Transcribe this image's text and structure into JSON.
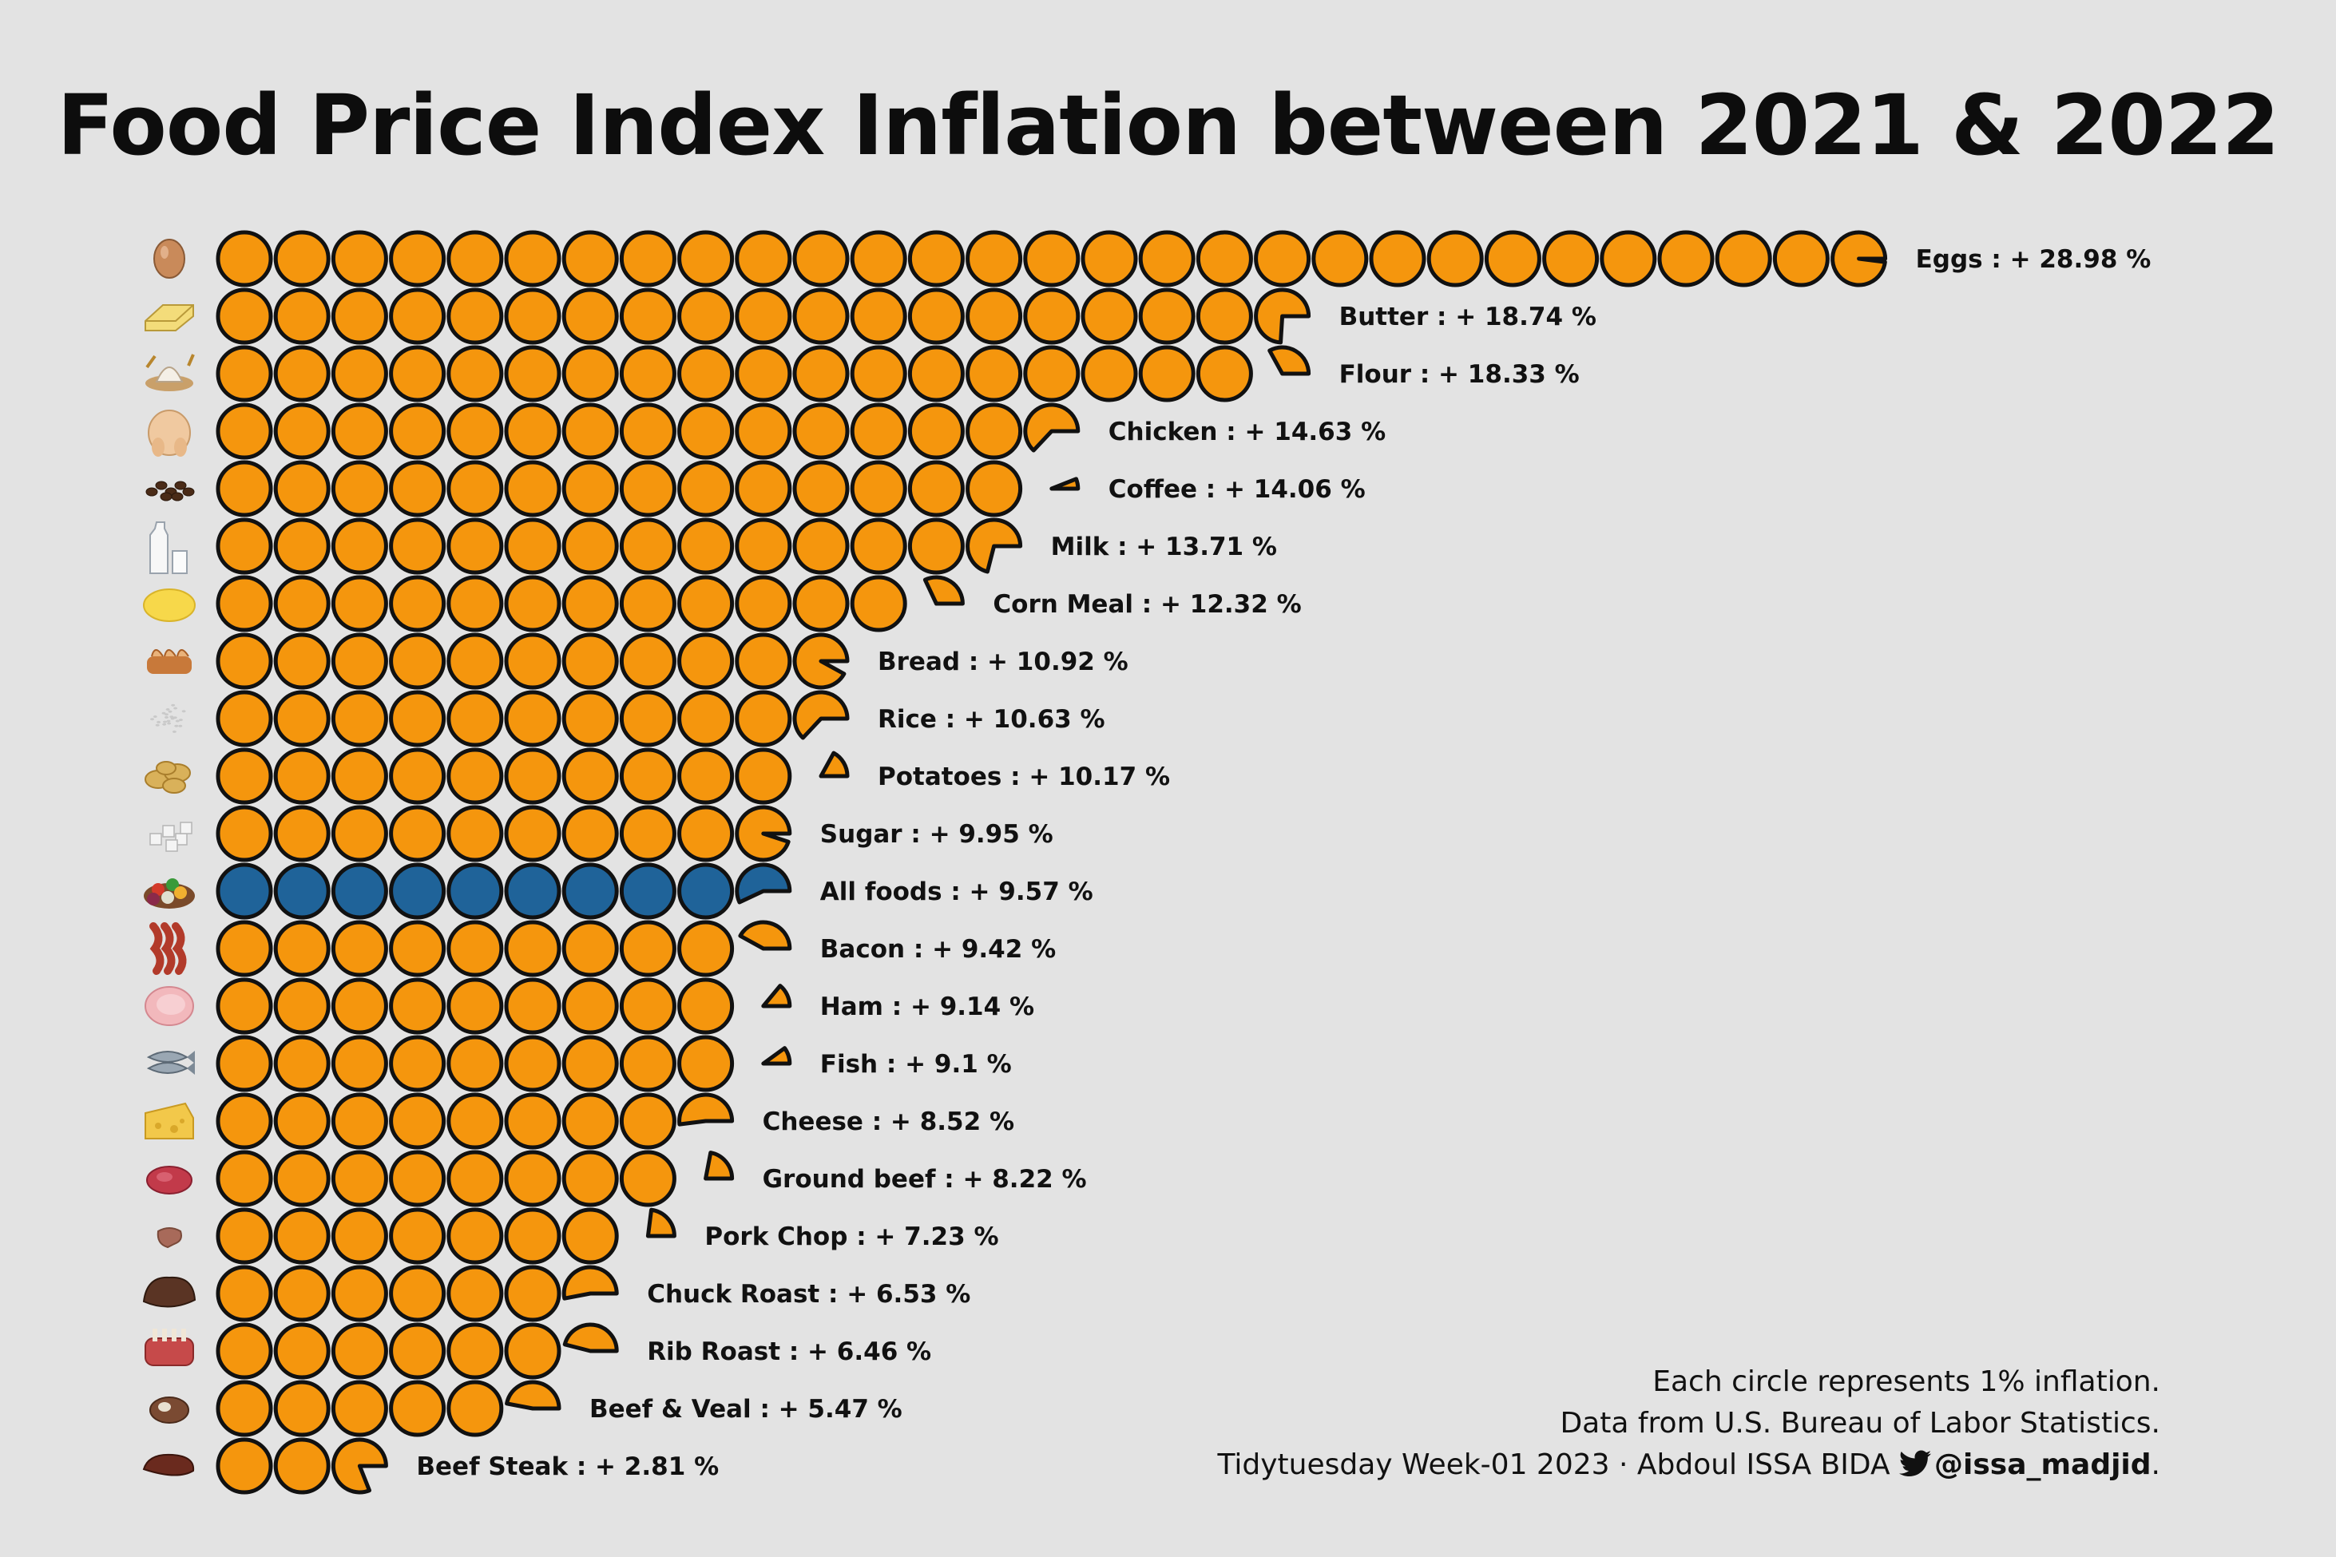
{
  "title": "Food Price Index Inflation between 2021 & 2022",
  "caption": {
    "line1": "Each circle represents 1% inflation.",
    "line2": "Data from U.S. Bureau of Labor Statistics.",
    "line3_prefix": "Tidytuesday Week-01 2023 · Abdoul ISSA BIDA",
    "handle_icon": "twitter-bird-icon",
    "handle": "@issa_madjid",
    "line3_suffix": "."
  },
  "colors": {
    "background": "#e3e3e3",
    "food": "#f5960d",
    "all_foods": "#1f6399",
    "stroke": "#111111"
  },
  "chart_data": {
    "type": "waffle",
    "unit": "Each circle represents 1% inflation",
    "series": [
      {
        "name": "Eggs",
        "value": 28.98,
        "label": "Eggs : + 28.98 %",
        "icon": "egg-icon"
      },
      {
        "name": "Butter",
        "value": 18.74,
        "label": "Butter : + 18.74 %",
        "icon": "butter-icon"
      },
      {
        "name": "Flour",
        "value": 18.33,
        "label": "Flour : + 18.33 %",
        "icon": "flour-icon"
      },
      {
        "name": "Chicken",
        "value": 14.63,
        "label": "Chicken : + 14.63 %",
        "icon": "chicken-icon"
      },
      {
        "name": "Coffee",
        "value": 14.06,
        "label": "Coffee : + 14.06 %",
        "icon": "coffee-beans-icon"
      },
      {
        "name": "Milk",
        "value": 13.71,
        "label": "Milk : + 13.71 %",
        "icon": "milk-icon"
      },
      {
        "name": "Corn Meal",
        "value": 12.32,
        "label": "Corn Meal : + 12.32 %",
        "icon": "corn-meal-icon"
      },
      {
        "name": "Bread",
        "value": 10.92,
        "label": "Bread : + 10.92 %",
        "icon": "bread-icon"
      },
      {
        "name": "Rice",
        "value": 10.63,
        "label": "Rice : + 10.63 %",
        "icon": "rice-icon"
      },
      {
        "name": "Potatoes",
        "value": 10.17,
        "label": "Potatoes : + 10.17 %",
        "icon": "potatoes-icon"
      },
      {
        "name": "Sugar",
        "value": 9.95,
        "label": "Sugar : + 9.95 %",
        "icon": "sugar-icon"
      },
      {
        "name": "All foods",
        "value": 9.57,
        "label": "All foods : + 9.57 %",
        "icon": "all-foods-icon",
        "highlight": true
      },
      {
        "name": "Bacon",
        "value": 9.42,
        "label": "Bacon : + 9.42 %",
        "icon": "bacon-icon"
      },
      {
        "name": "Ham",
        "value": 9.14,
        "label": "Ham : + 9.14 %",
        "icon": "ham-icon"
      },
      {
        "name": "Fish",
        "value": 9.1,
        "label": "Fish : + 9.1 %",
        "icon": "fish-icon"
      },
      {
        "name": "Cheese",
        "value": 8.52,
        "label": "Cheese : + 8.52 %",
        "icon": "cheese-icon"
      },
      {
        "name": "Ground beef",
        "value": 8.22,
        "label": "Ground beef : + 8.22 %",
        "icon": "ground-beef-icon"
      },
      {
        "name": "Pork Chop",
        "value": 7.23,
        "label": "Pork Chop : + 7.23 %",
        "icon": "pork-chop-icon"
      },
      {
        "name": "Chuck Roast",
        "value": 6.53,
        "label": "Chuck Roast : + 6.53 %",
        "icon": "chuck-roast-icon"
      },
      {
        "name": "Rib Roast",
        "value": 6.46,
        "label": "Rib Roast : + 6.46 %",
        "icon": "rib-roast-icon"
      },
      {
        "name": "Beef & Veal",
        "value": 5.47,
        "label": "Beef & Veal : + 5.47 %",
        "icon": "beef-veal-icon"
      },
      {
        "name": "Beef Steak",
        "value": 2.81,
        "label": "Beef Steak : + 2.81 %",
        "icon": "beef-steak-icon"
      }
    ]
  }
}
